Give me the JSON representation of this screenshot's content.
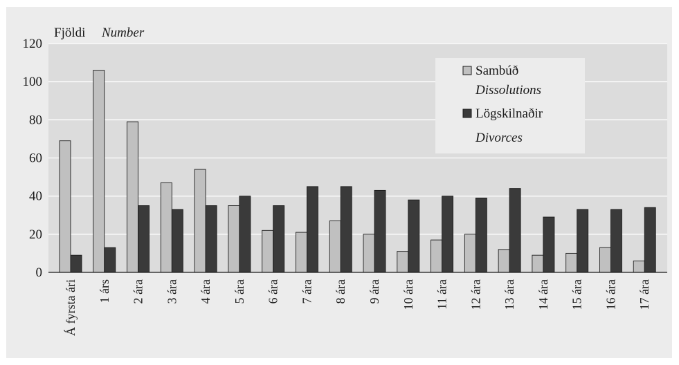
{
  "chart_data": {
    "type": "bar",
    "title": "",
    "ylabel": "Fjöldi",
    "ylabel_en": "Number",
    "xlabel": "",
    "ylim": [
      0,
      120
    ],
    "yticks": [
      0,
      20,
      40,
      60,
      80,
      100,
      120
    ],
    "grid": true,
    "legend_position": "top-right",
    "categories": [
      "Á fyrsta ári",
      "1 árs",
      "2 ára",
      "3 ára",
      "4 ára",
      "5 ára",
      "6 ára",
      "7 ára",
      "8 ára",
      "9 ára",
      "10 ára",
      "11 ára",
      "12 ára",
      "13 ára",
      "14 ára",
      "15 ára",
      "16 ára",
      "17 ára"
    ],
    "series": [
      {
        "name": "Sambúð",
        "name_en": "Dissolutions",
        "color": "#c0c0c0",
        "values": [
          69,
          106,
          79,
          47,
          54,
          35,
          22,
          21,
          27,
          20,
          11,
          17,
          20,
          12,
          9,
          10,
          13,
          6
        ]
      },
      {
        "name": "Lögskilnaðir",
        "name_en": "Divorces",
        "color": "#3a3a3a",
        "values": [
          9,
          13,
          35,
          33,
          35,
          40,
          35,
          45,
          45,
          43,
          38,
          40,
          39,
          44,
          29,
          33,
          33,
          34
        ]
      }
    ]
  },
  "colors": {
    "plot_background": "#dcdcdc",
    "frame_background": "#ececec",
    "gridline": "#ffffff",
    "legend_background": "#ececec"
  }
}
